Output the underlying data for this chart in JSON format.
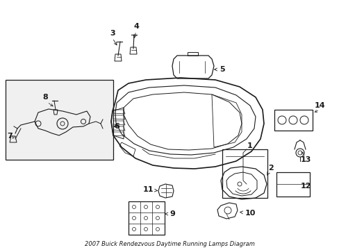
{
  "title": "2007 Buick Rendezvous Daytime Running Lamps Diagram",
  "bg_color": "#ffffff",
  "line_color": "#1a1a1a",
  "fig_width": 4.89,
  "fig_height": 3.6,
  "dpi": 100
}
